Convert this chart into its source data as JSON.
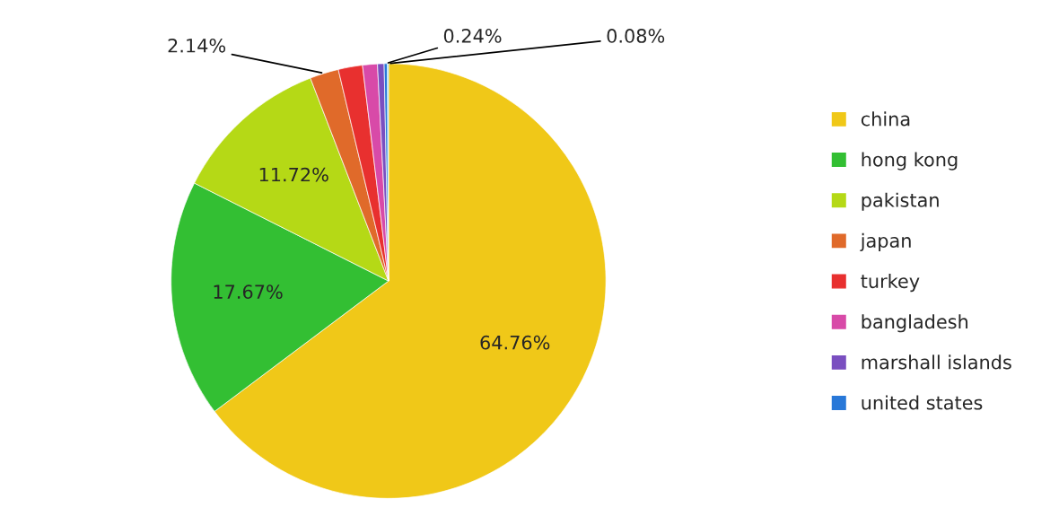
{
  "chart_data": {
    "type": "pie",
    "categories": [
      "china",
      "hong kong",
      "pakistan",
      "japan",
      "turkey",
      "bangladesh",
      "marshall islands",
      "united states",
      null
    ],
    "values": [
      64.76,
      17.67,
      11.72,
      2.14,
      1.8,
      1.1,
      0.49,
      0.24,
      0.08
    ],
    "value_labels": [
      "64.76%",
      "17.67%",
      "11.72%",
      "2.14%",
      null,
      null,
      null,
      "0.24%",
      "0.08%"
    ],
    "colors": [
      "#f0c818",
      "#33bf33",
      "#b5d916",
      "#e06a2a",
      "#e8302f",
      "#d84aa8",
      "#7a4fc0",
      "#2878d8",
      "#5bc8f0"
    ],
    "legend": "right"
  }
}
